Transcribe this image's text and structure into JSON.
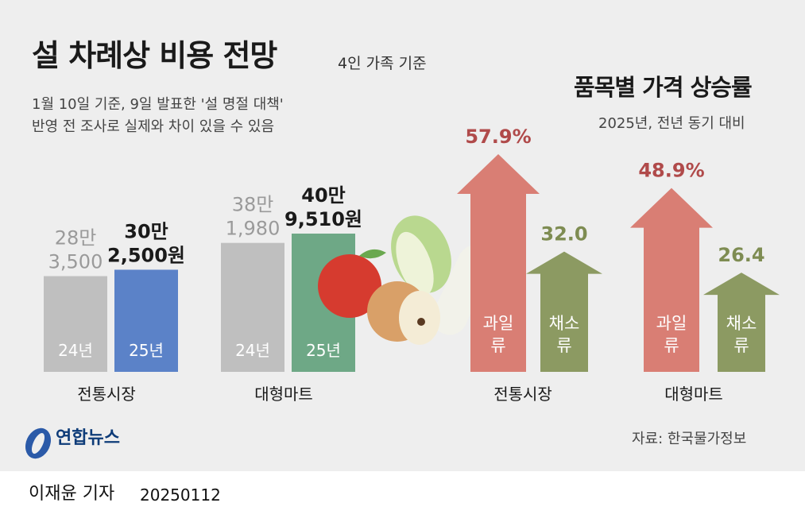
{
  "header": {
    "title": "설 차례상 비용 전망",
    "basis": "4인 가족 기준",
    "note_line1": "1월 10일 기준, 9일 발표한 '설 명절 대책'",
    "note_line2": "반영 전 조사로 실제와 차이 있을 수 있음"
  },
  "chart_data": [
    {
      "type": "bar",
      "title": "설 차례상 비용 전망",
      "unit": "원",
      "groups": [
        "전통시장",
        "대형마트"
      ],
      "bars": [
        {
          "group": "전통시장",
          "year_label": "24년",
          "value": 283500,
          "label_line1": "28만",
          "label_line2": "3,500",
          "color": "#bfbfbf"
        },
        {
          "group": "전통시장",
          "year_label": "25년",
          "value": 302500,
          "label_line1": "30만",
          "label_line2": "2,500원",
          "color": "#5b82c8"
        },
        {
          "group": "대형마트",
          "year_label": "24년",
          "value": 381980,
          "label_line1": "38만",
          "label_line2": "1,980",
          "color": "#bfbfbf"
        },
        {
          "group": "대형마트",
          "year_label": "25년",
          "value": 409510,
          "label_line1": "40만",
          "label_line2": "9,510원",
          "color": "#6ea886"
        }
      ]
    },
    {
      "type": "bar",
      "title": "품목별 가격 상승률",
      "subtitle": "2025년, 전년 동기 대비",
      "groups": [
        "전통시장",
        "대형마트"
      ],
      "bars": [
        {
          "group": "전통시장",
          "category_line1": "과일",
          "category_line2": "류",
          "value": 57.9,
          "label": "57.9%",
          "color": "#d97e74",
          "label_color": "#b04a4a"
        },
        {
          "group": "전통시장",
          "category_line1": "채소",
          "category_line2": "류",
          "value": 32.0,
          "label": "32.0",
          "color": "#8c9a62",
          "label_color": "#7e8c52"
        },
        {
          "group": "대형마트",
          "category_line1": "과일",
          "category_line2": "류",
          "value": 48.9,
          "label": "48.9%",
          "color": "#d97e74",
          "label_color": "#b04a4a"
        },
        {
          "group": "대형마트",
          "category_line1": "채소",
          "category_line2": "류",
          "value": 26.4,
          "label": "26.4",
          "color": "#8c9a62",
          "label_color": "#7e8c52"
        }
      ]
    }
  ],
  "footer": {
    "logo_text": "연합뉴스",
    "source": "자료: 한국물가정보",
    "reporter": "이재윤 기자",
    "date": "20250112"
  }
}
